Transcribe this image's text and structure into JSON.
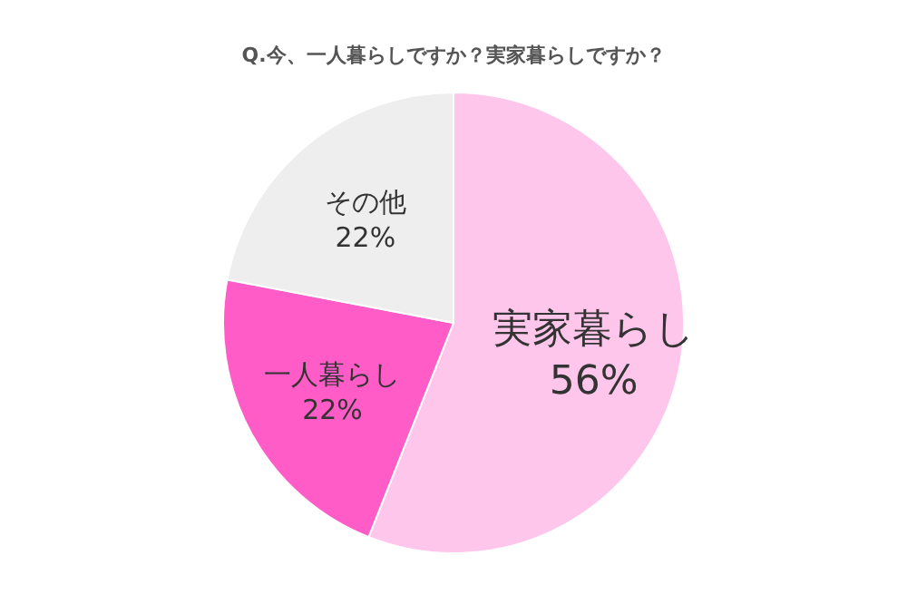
{
  "chart_data": {
    "type": "pie",
    "title": "Q.今、一人暮らしですか？実家暮らしですか？",
    "categories": [
      "実家暮らし",
      "一人暮らし",
      "その他"
    ],
    "values": [
      56,
      22,
      22
    ],
    "value_labels": [
      "56%",
      "22%",
      "22%"
    ],
    "colors": [
      "#ffc6ec",
      "#ff5cc8",
      "#eeeeee"
    ]
  }
}
